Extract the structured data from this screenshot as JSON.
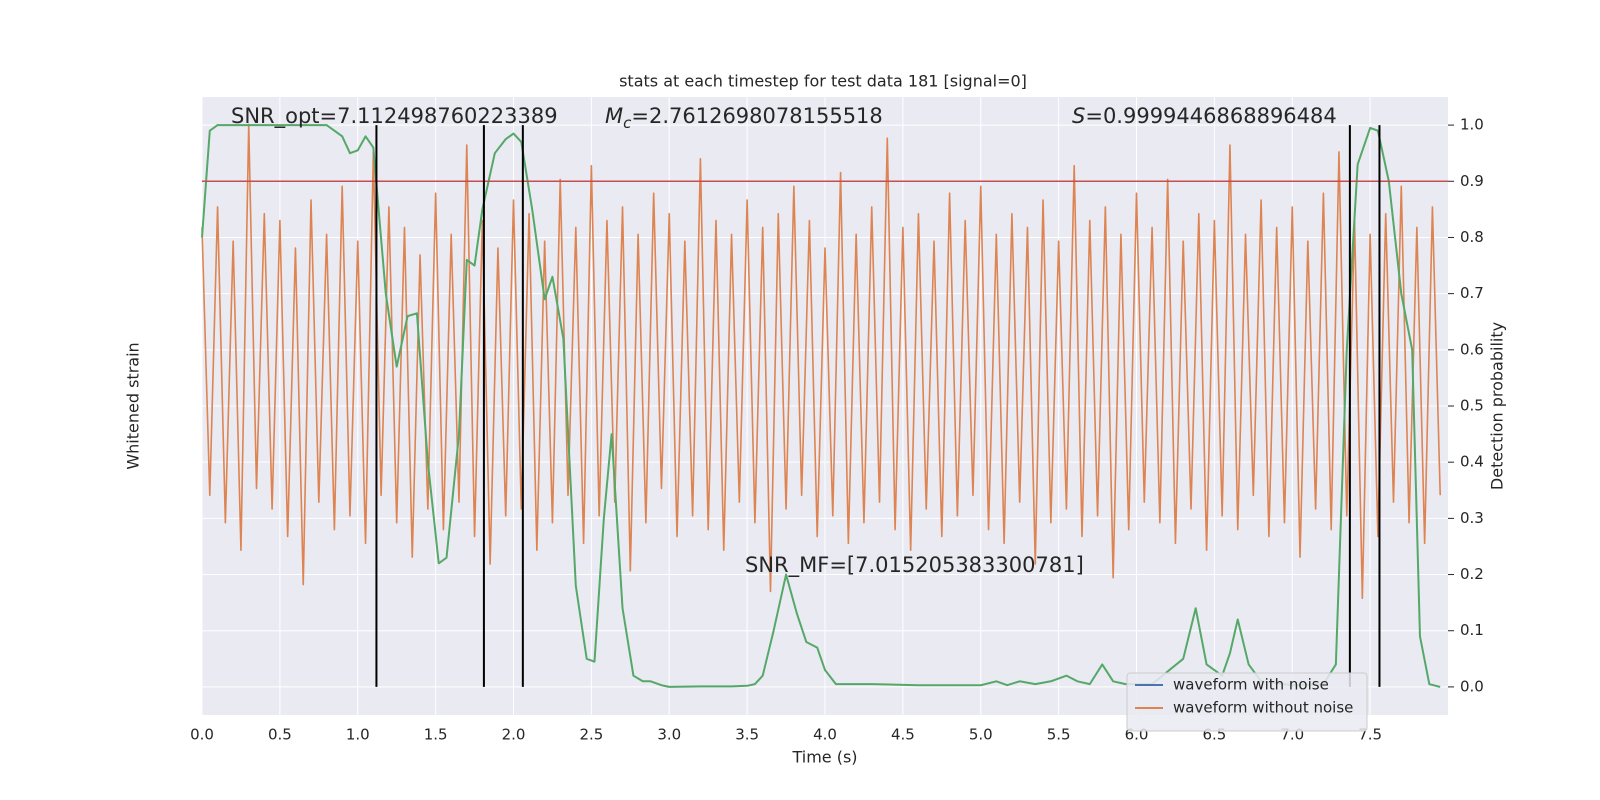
{
  "chart_data": {
    "type": "line",
    "title": "stats at each timestep for test data 181 [signal=0]",
    "xlabel": "Time (s)",
    "ylabel": "Whitened strain",
    "y2label": "Detection probability",
    "xlim": [
      0,
      8
    ],
    "xticks": [
      {
        "value": 0,
        "label": "0.0"
      },
      0.5,
      {
        "value": 1,
        "label": "1.0"
      },
      1.5,
      {
        "value": 2,
        "label": "2.0"
      },
      2.5,
      {
        "value": 3,
        "label": "3.0"
      },
      3.5,
      {
        "value": 4,
        "label": "4.0"
      },
      4.5,
      {
        "value": 5,
        "label": "5.0"
      },
      5.5,
      {
        "value": 6,
        "label": "6.0"
      },
      6.5,
      {
        "value": 7,
        "label": "7.0"
      },
      7.5
    ],
    "ylim": [
      -5,
      4
    ],
    "y2lim": [
      -0.05,
      1.05
    ],
    "y2ticks": [
      {
        "value": 0,
        "label": "0.0"
      },
      0.1,
      0.2,
      0.3,
      0.4,
      0.5,
      0.6,
      0.7,
      0.8,
      0.9,
      {
        "value": 1,
        "label": "1.0"
      }
    ],
    "grid": true,
    "legend": "lower right",
    "series": [
      {
        "name": "waveform with noise",
        "color": "#4c72b0",
        "x": [],
        "values": []
      },
      {
        "name": "waveform without noise",
        "color": "#dd8452",
        "x": [
          0,
          0.05,
          0.1,
          0.15,
          0.2,
          0.25,
          0.3,
          0.35,
          0.4,
          0.45,
          0.5,
          0.55,
          0.6,
          0.65,
          0.7,
          0.75,
          0.8,
          0.85,
          0.9,
          0.95,
          1,
          1.05,
          1.1,
          1.15,
          1.2,
          1.25,
          1.3,
          1.35,
          1.4,
          1.45,
          1.5,
          1.55,
          1.6,
          1.65,
          1.7,
          1.75,
          1.8,
          1.85,
          1.9,
          1.95,
          2,
          2.05,
          2.1,
          2.15,
          2.2,
          2.25,
          2.3,
          2.35,
          2.4,
          2.45,
          2.5,
          2.55,
          2.6,
          2.65,
          2.7,
          2.75,
          2.8,
          2.85,
          2.9,
          2.95,
          3,
          3.05,
          3.1,
          3.15,
          3.2,
          3.25,
          3.3,
          3.35,
          3.4,
          3.45,
          3.5,
          3.55,
          3.6,
          3.65,
          3.7,
          3.75,
          3.8,
          3.85,
          3.9,
          3.95,
          4,
          4.05,
          4.1,
          4.15,
          4.2,
          4.25,
          4.3,
          4.35,
          4.4,
          4.45,
          4.5,
          4.55,
          4.6,
          4.65,
          4.7,
          4.75,
          4.8,
          4.85,
          4.9,
          4.95,
          5,
          5.05,
          5.1,
          5.15,
          5.2,
          5.25,
          5.3,
          5.35,
          5.4,
          5.45,
          5.5,
          5.55,
          5.6,
          5.65,
          5.7,
          5.75,
          5.8,
          5.85,
          5.9,
          5.95,
          6,
          6.05,
          6.1,
          6.15,
          6.2,
          6.25,
          6.3,
          6.35,
          6.4,
          6.45,
          6.5,
          6.55,
          6.6,
          6.65,
          6.7,
          6.75,
          6.8,
          6.85,
          6.9,
          6.95,
          7,
          7.05,
          7.1,
          7.15,
          7.2,
          7.25,
          7.3,
          7.35,
          7.4,
          7.45,
          7.5,
          7.55,
          7.6,
          7.65,
          7.7,
          7.75,
          7.8,
          7.85,
          7.9,
          7.95
        ],
        "values": [
          2.1,
          -1.8,
          2.4,
          -2.2,
          1.9,
          -2.6,
          3.6,
          -1.7,
          2.3,
          -2.0,
          2.2,
          -2.4,
          1.8,
          -3.1,
          2.5,
          -1.9,
          2.0,
          -2.3,
          2.7,
          -2.1,
          1.9,
          -2.5,
          3.2,
          -1.8,
          2.4,
          -2.2,
          2.1,
          -2.7,
          1.7,
          -2.0,
          2.6,
          -2.3,
          2.0,
          -1.9,
          3.3,
          -2.4,
          2.2,
          -2.8,
          1.8,
          -2.1,
          2.5,
          -2.0,
          2.3,
          -2.6,
          1.9,
          -2.2,
          2.8,
          -1.8,
          2.1,
          -2.5,
          3.0,
          -2.1,
          2.2,
          -1.9,
          2.4,
          -2.9,
          2.0,
          -2.2,
          2.6,
          -1.7,
          2.3,
          -2.4,
          1.9,
          -2.1,
          3.1,
          -2.3,
          2.2,
          -2.6,
          2.0,
          -1.9,
          2.5,
          -2.2,
          2.1,
          -3.2,
          2.3,
          -2.0,
          2.7,
          -1.8,
          2.2,
          -2.4,
          1.8,
          -2.1,
          2.9,
          -2.5,
          2.0,
          -2.2,
          2.4,
          -1.9,
          3.4,
          -2.3,
          2.1,
          -2.6,
          2.3,
          -2.0,
          1.9,
          -2.4,
          2.6,
          -2.1,
          2.2,
          -1.8,
          2.7,
          -2.3,
          2.0,
          -2.5,
          2.3,
          -1.9,
          2.1,
          -2.8,
          2.5,
          -2.2,
          1.9,
          -2.0,
          3.0,
          -2.4,
          2.2,
          -2.1,
          2.4,
          -3.0,
          2.0,
          -2.3,
          2.6,
          -1.9,
          2.1,
          -2.2,
          2.8,
          -2.5,
          1.9,
          -2.0,
          2.3,
          -2.6,
          2.2,
          -2.1,
          3.3,
          -2.3,
          2.0,
          -1.8,
          2.5,
          -2.4,
          2.1,
          -2.2,
          2.4,
          -2.7,
          1.9,
          -2.0,
          2.6,
          -2.3,
          3.2,
          -2.1,
          2.2,
          -3.3,
          2.0,
          -2.4,
          2.3,
          -1.9,
          2.7,
          -2.2,
          2.1,
          -2.5,
          2.4,
          -1.8
        ]
      },
      {
        "color": "#55a868",
        "axis": "y2",
        "x": [
          0,
          0.05,
          0.1,
          0.2,
          0.3,
          0.4,
          0.5,
          0.6,
          0.7,
          0.8,
          0.85,
          0.9,
          0.95,
          1.0,
          1.05,
          1.1,
          1.18,
          1.25,
          1.32,
          1.38,
          1.45,
          1.52,
          1.57,
          1.65,
          1.7,
          1.75,
          1.8,
          1.88,
          1.95,
          2.0,
          2.05,
          2.12,
          2.2,
          2.25,
          2.32,
          2.4,
          2.47,
          2.52,
          2.58,
          2.63,
          2.7,
          2.77,
          2.83,
          2.88,
          2.95,
          3.0,
          3.2,
          3.4,
          3.5,
          3.55,
          3.6,
          3.67,
          3.75,
          3.82,
          3.88,
          3.95,
          4.0,
          4.07,
          4.3,
          4.6,
          5.0,
          5.1,
          5.17,
          5.25,
          5.35,
          5.45,
          5.55,
          5.62,
          5.7,
          5.78,
          5.85,
          5.93,
          6.1,
          6.3,
          6.38,
          6.45,
          6.55,
          6.6,
          6.65,
          6.72,
          6.8,
          7.0,
          7.2,
          7.28,
          7.35,
          7.42,
          7.5,
          7.55,
          7.62,
          7.7,
          7.77,
          7.82,
          7.88,
          7.95
        ],
        "values": [
          0.8,
          0.99,
          1.0,
          1.0,
          1.0,
          1.0,
          1.0,
          1.0,
          1.0,
          1.0,
          0.99,
          0.98,
          0.95,
          0.955,
          0.98,
          0.96,
          0.7,
          0.57,
          0.66,
          0.665,
          0.4,
          0.22,
          0.23,
          0.45,
          0.76,
          0.75,
          0.85,
          0.95,
          0.975,
          0.985,
          0.97,
          0.85,
          0.69,
          0.73,
          0.62,
          0.18,
          0.05,
          0.045,
          0.3,
          0.45,
          0.14,
          0.02,
          0.01,
          0.01,
          0.003,
          0,
          0.001,
          0.001,
          0.002,
          0.005,
          0.02,
          0.1,
          0.2,
          0.13,
          0.08,
          0.07,
          0.03,
          0.005,
          0.005,
          0.003,
          0.003,
          0.01,
          0.003,
          0.01,
          0.005,
          0.01,
          0.02,
          0.01,
          0.005,
          0.04,
          0.01,
          0.005,
          0.005,
          0.05,
          0.14,
          0.04,
          0.02,
          0.06,
          0.12,
          0.04,
          0.01,
          0.003,
          0.005,
          0.04,
          0.6,
          0.93,
          0.995,
          0.99,
          0.9,
          0.7,
          0.6,
          0.09,
          0.005,
          0
        ]
      }
    ],
    "vlines": {
      "color": "#000000",
      "x": [
        1.12,
        1.81,
        2.06,
        7.37,
        7.56
      ],
      "ymin": 0,
      "ymax": 1
    },
    "hline": {
      "color": "#c44e52",
      "y": 0.9
    },
    "annotations": [
      {
        "text": "SNR_opt=7.112498760223389"
      },
      {
        "symbol": "M",
        "sub": "c",
        "text": "=2.7612698078155518"
      },
      {
        "symbol": "S",
        "text": "=0.9999446868896484"
      },
      {
        "text": "SNR_MF=[7.015205383300781]"
      }
    ]
  }
}
